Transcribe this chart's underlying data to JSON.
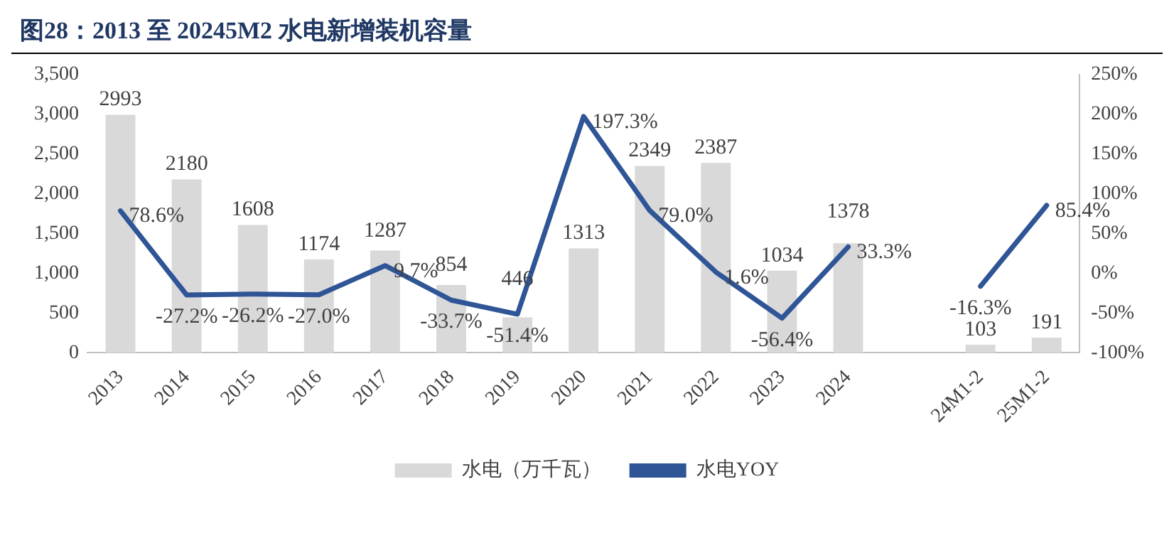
{
  "chart_data": {
    "type": "bar",
    "title": "图28：2013 至 20245M2 水电新增装机容量",
    "categories": [
      "2013",
      "2014",
      "2015",
      "2016",
      "2017",
      "2018",
      "2019",
      "2020",
      "2021",
      "2022",
      "2023",
      "2024",
      null,
      "24M1-2",
      "25M1-2"
    ],
    "series": [
      {
        "name": "水电（万千瓦）",
        "color": "#d9d9d9",
        "values": [
          2993,
          2180,
          1608,
          1174,
          1287,
          854,
          446,
          1313,
          2349,
          2387,
          1034,
          1378,
          null,
          103,
          191
        ],
        "value_labels": [
          "2993",
          "2180",
          "1608",
          "1174",
          "1287",
          "854",
          "446",
          "1313",
          "2349",
          "2387",
          "1034",
          "1378",
          null,
          "103",
          "191"
        ]
      },
      {
        "name": "水电YOY",
        "type": "line",
        "axis": "y2",
        "color": "#2f5597",
        "values": [
          78.6,
          -27.2,
          -26.2,
          -27.0,
          9.7,
          -33.7,
          -51.4,
          197.3,
          79.0,
          1.6,
          -56.4,
          33.3,
          null,
          -16.3,
          85.4
        ],
        "value_labels": [
          "78.6%",
          "-27.2%",
          "-26.2%",
          "-27.0%",
          "9.7%",
          "-33.7%",
          "-51.4%",
          "197.3%",
          "79.0%",
          "1.6%",
          "-56.4%",
          "33.3%",
          null,
          "-16.3%",
          "85.4%"
        ]
      }
    ],
    "ylim": [
      0,
      3500
    ],
    "yticks": [
      {
        "value": 0,
        "label": "0"
      },
      {
        "value": 500,
        "label": "500"
      },
      {
        "value": 1000,
        "label": "1,000"
      },
      {
        "value": 1500,
        "label": "1,500"
      },
      {
        "value": 2000,
        "label": "2,000"
      },
      {
        "value": 2500,
        "label": "2,500"
      },
      {
        "value": 3000,
        "label": "3,000"
      },
      {
        "value": 3500,
        "label": "3,500"
      }
    ],
    "y2lim": [
      -100,
      250
    ],
    "y2ticks": [
      {
        "value": -100,
        "label": "-100%"
      },
      {
        "value": -50,
        "label": "-50%"
      },
      {
        "value": 0,
        "label": "0%"
      },
      {
        "value": 50,
        "label": "50%"
      },
      {
        "value": 100,
        "label": "100%"
      },
      {
        "value": 150,
        "label": "150%"
      },
      {
        "value": 200,
        "label": "200%"
      },
      {
        "value": 250,
        "label": "250%"
      }
    ],
    "legend": "bottom",
    "marker": "none",
    "line_style": "solid"
  }
}
